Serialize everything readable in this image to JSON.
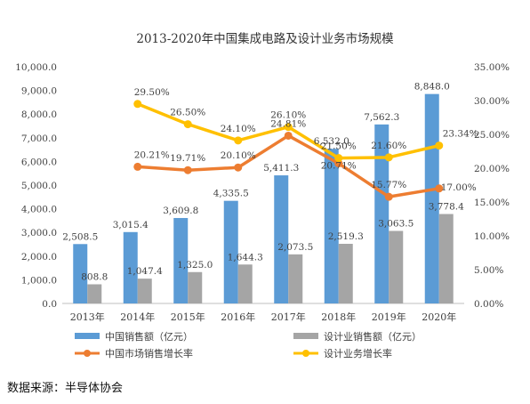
{
  "chart_data": {
    "type": "bar",
    "title": "2013-2020年中国集成电路及设计业务市场规模",
    "categories": [
      "2013年",
      "2014年",
      "2015年",
      "2016年",
      "2017年",
      "2018年",
      "2019年",
      "2020年"
    ],
    "y_left": {
      "ylim": [
        0,
        10000
      ],
      "ticks": [
        "0.0",
        "1,000.0",
        "2,000.0",
        "3,000.0",
        "4,000.0",
        "5,000.0",
        "6,000.0",
        "7,000.0",
        "8,000.0",
        "9,000.0",
        "10,000.0"
      ]
    },
    "y_right": {
      "ylim": [
        0,
        35
      ],
      "ticks": [
        "0.00%",
        "5.00%",
        "10.00%",
        "15.00%",
        "20.00%",
        "25.00%",
        "30.00%",
        "35.00%"
      ]
    },
    "bar_series": [
      {
        "name": "中国销售额（亿元）",
        "color": "#5b9bd5",
        "values": [
          2508.5,
          3015.4,
          3609.8,
          4335.5,
          5411.3,
          6532.0,
          7562.3,
          8848.0
        ],
        "labels": [
          "2,508.5",
          "3,015.4",
          "3,609.8",
          "4,335.5",
          "5,411.3",
          "6,532.0",
          "7,562.3",
          "8,848.0"
        ]
      },
      {
        "name": "设计业销售额（亿元）",
        "color": "#a5a5a5",
        "values": [
          808.8,
          1047.4,
          1325.0,
          1644.3,
          2073.5,
          2519.3,
          3063.5,
          3778.4
        ],
        "labels": [
          "808.8",
          "1,047.4",
          "1,325.0",
          "1,644.3",
          "2,073.5",
          "2,519.3",
          "3,063.5",
          "3,778.4"
        ]
      }
    ],
    "line_series": [
      {
        "name": "中国市场销售增长率",
        "color": "#ed7d31",
        "values": [
          null,
          20.21,
          19.71,
          20.1,
          24.81,
          20.71,
          15.77,
          17.0
        ],
        "labels": [
          "",
          "20.21%",
          "19.71%",
          "20.10%",
          "24.81%",
          "20.71%",
          "15.77%",
          "17.00%"
        ]
      },
      {
        "name": "设计业务增长率",
        "color": "#ffc000",
        "values": [
          null,
          29.5,
          26.5,
          24.1,
          26.1,
          21.5,
          21.6,
          23.34
        ],
        "labels": [
          "",
          "29.50%",
          "26.50%",
          "24.10%",
          "26.10%",
          "21.50%",
          "21.60%",
          "23.34%"
        ]
      }
    ],
    "legend_placement": "bottom",
    "grid": false
  },
  "source": "数据来源：半导体协会"
}
